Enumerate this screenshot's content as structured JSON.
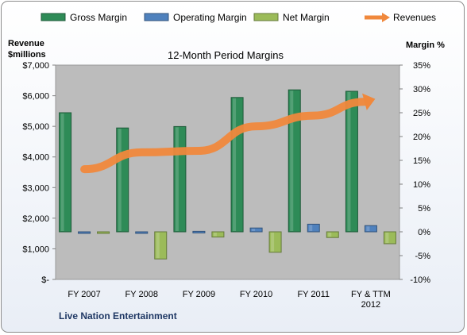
{
  "chart_data": {
    "type": "bar",
    "title": "12-Month Period Margins",
    "company": "Live Nation Entertainment",
    "categories": [
      "FY 2007",
      "FY 2008",
      "FY 2009",
      "FY 2010",
      "FY 2011",
      "FY & TTM 2012"
    ],
    "left_axis": {
      "label_line1": "Revenue",
      "label_line2": "$millions",
      "ticks": [
        "$-",
        "$1,000",
        "$2,000",
        "$3,000",
        "$4,000",
        "$5,000",
        "$6,000",
        "$7,000"
      ],
      "range": [
        0,
        7000
      ]
    },
    "right_axis": {
      "label": "Margin %",
      "ticks": [
        "-10%",
        "-5%",
        "0%",
        "5%",
        "10%",
        "15%",
        "20%",
        "25%",
        "30%",
        "35%"
      ],
      "range": [
        -10,
        35
      ]
    },
    "series": [
      {
        "name": "Gross Margin",
        "kind": "bar",
        "axis": "right",
        "color": "#2e8b57",
        "values": [
          25.0,
          21.8,
          22.1,
          28.2,
          29.8,
          29.5
        ]
      },
      {
        "name": "Operating Margin",
        "kind": "bar",
        "axis": "right",
        "color": "#4f81bd",
        "values": [
          -0.3,
          -0.3,
          0.1,
          0.8,
          1.6,
          1.3
        ]
      },
      {
        "name": "Net Margin",
        "kind": "bar",
        "axis": "right",
        "color": "#9bbb59",
        "values": [
          -0.2,
          -5.7,
          -1.1,
          -4.3,
          -1.2,
          -2.5
        ]
      },
      {
        "name": "Revenues",
        "kind": "line",
        "axis": "left",
        "color": "#f0883c",
        "values": [
          3600,
          4150,
          4200,
          5000,
          5350,
          5800
        ]
      }
    ],
    "legend_position": "top",
    "grid": false
  }
}
